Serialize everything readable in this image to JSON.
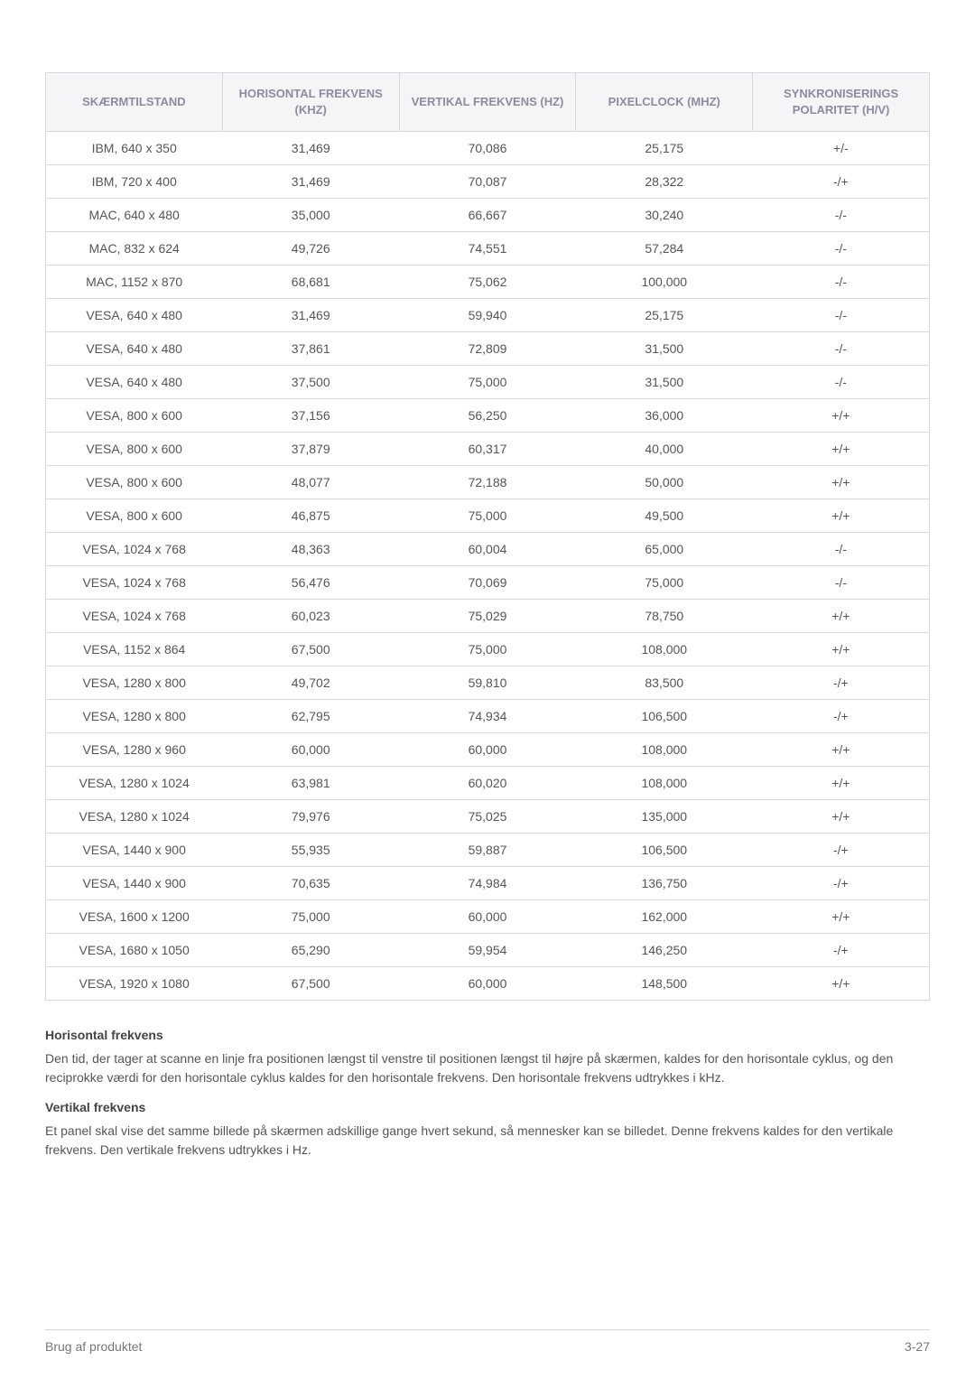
{
  "table": {
    "columns": [
      "SKÆRMTILSTAND",
      "HORISONTAL FREKVENS (KHZ)",
      "VERTIKAL FREKVENS (HZ)",
      "PIXELCLOCK (MHZ)",
      "SYNKRONISERINGS POLARITET (H/V)"
    ],
    "header_bg": "#f5f4f7",
    "header_text_color": "#8f8a9e",
    "border_color": "#d8d6de",
    "cell_text_color": "#555555",
    "rows": [
      [
        "IBM, 640 x 350",
        "31,469",
        "70,086",
        "25,175",
        "+/-"
      ],
      [
        "IBM, 720 x 400",
        "31,469",
        "70,087",
        "28,322",
        "-/+"
      ],
      [
        "MAC, 640 x 480",
        "35,000",
        "66,667",
        "30,240",
        "-/-"
      ],
      [
        "MAC, 832 x 624",
        "49,726",
        "74,551",
        "57,284",
        "-/-"
      ],
      [
        "MAC, 1152 x 870",
        "68,681",
        "75,062",
        "100,000",
        "-/-"
      ],
      [
        "VESA, 640 x 480",
        "31,469",
        "59,940",
        "25,175",
        "-/-"
      ],
      [
        "VESA, 640 x 480",
        "37,861",
        "72,809",
        "31,500",
        "-/-"
      ],
      [
        "VESA, 640 x 480",
        "37,500",
        "75,000",
        "31,500",
        "-/-"
      ],
      [
        "VESA, 800 x 600",
        "37,156",
        "56,250",
        "36,000",
        "+/+"
      ],
      [
        "VESA, 800 x 600",
        "37,879",
        "60,317",
        "40,000",
        "+/+"
      ],
      [
        "VESA, 800 x 600",
        "48,077",
        "72,188",
        "50,000",
        "+/+"
      ],
      [
        "VESA, 800 x 600",
        "46,875",
        "75,000",
        "49,500",
        "+/+"
      ],
      [
        "VESA, 1024 x 768",
        "48,363",
        "60,004",
        "65,000",
        "-/-"
      ],
      [
        "VESA, 1024 x 768",
        "56,476",
        "70,069",
        "75,000",
        "-/-"
      ],
      [
        "VESA, 1024 x 768",
        "60,023",
        "75,029",
        "78,750",
        "+/+"
      ],
      [
        "VESA, 1152 x 864",
        "67,500",
        "75,000",
        "108,000",
        "+/+"
      ],
      [
        "VESA, 1280 x 800",
        "49,702",
        "59,810",
        "83,500",
        "-/+"
      ],
      [
        "VESA, 1280 x 800",
        "62,795",
        "74,934",
        "106,500",
        "-/+"
      ],
      [
        "VESA, 1280 x 960",
        "60,000",
        "60,000",
        "108,000",
        "+/+"
      ],
      [
        "VESA, 1280 x 1024",
        "63,981",
        "60,020",
        "108,000",
        "+/+"
      ],
      [
        "VESA, 1280 x 1024",
        "79,976",
        "75,025",
        "135,000",
        "+/+"
      ],
      [
        "VESA, 1440 x 900",
        "55,935",
        "59,887",
        "106,500",
        "-/+"
      ],
      [
        "VESA, 1440 x 900",
        "70,635",
        "74,984",
        "136,750",
        "-/+"
      ],
      [
        "VESA, 1600 x 1200",
        "75,000",
        "60,000",
        "162,000",
        "+/+"
      ],
      [
        "VESA, 1680 x 1050",
        "65,290",
        "59,954",
        "146,250",
        "-/+"
      ],
      [
        "VESA, 1920 x 1080",
        "67,500",
        "60,000",
        "148,500",
        "+/+"
      ]
    ]
  },
  "descriptions": {
    "horiz_title": "Horisontal frekvens",
    "horiz_text": "Den tid, der tager at scanne en linje fra positionen længst til venstre til positionen længst til højre på skærmen, kaldes for den horisontale cyklus, og den reciprokke værdi for den horisontale cyklus kaldes for den horisontale frekvens. Den horisontale frekvens udtrykkes i kHz.",
    "vert_title": "Vertikal frekvens",
    "vert_text": "Et panel skal vise det samme billede på skærmen adskillige gange hvert sekund, så mennesker kan se billedet. Denne frekvens kaldes for den vertikale frekvens. Den vertikale frekvens udtrykkes i Hz."
  },
  "footer": {
    "left": "Brug af produktet",
    "right": "3-27"
  }
}
